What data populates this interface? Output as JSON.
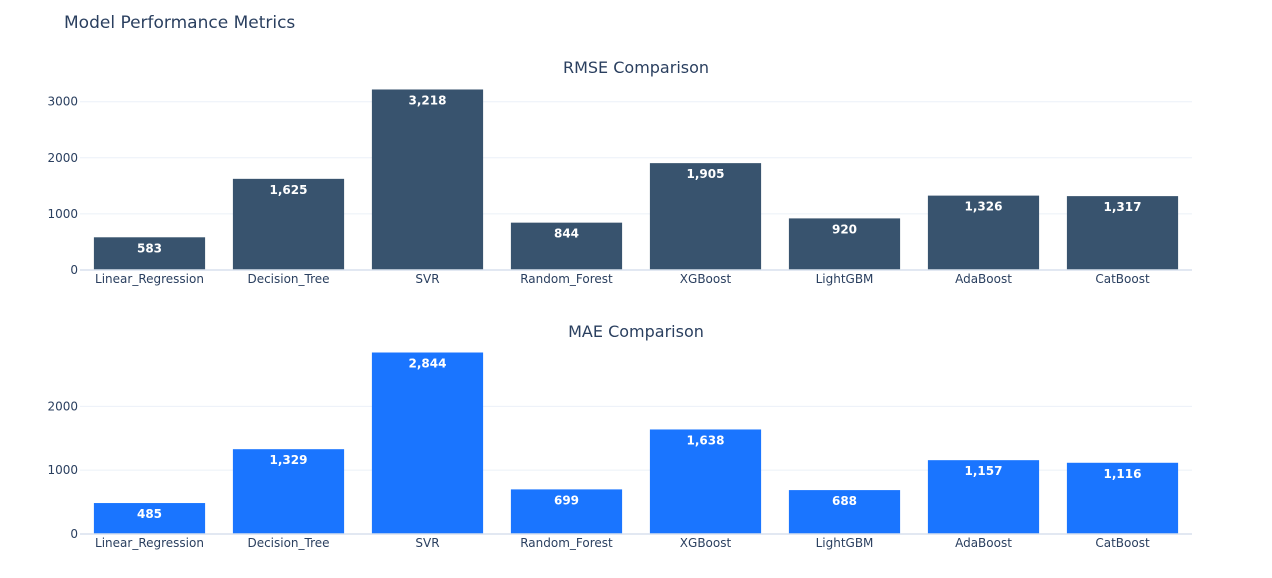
{
  "title": "Model Performance Metrics",
  "colors": {
    "rmse": "#38536e",
    "mae": "#1a75ff"
  },
  "chart_data": [
    {
      "type": "bar",
      "title": "RMSE Comparison",
      "categories": [
        "Linear_Regression",
        "Decision_Tree",
        "SVR",
        "Random_Forest",
        "XGBoost",
        "LightGBM",
        "AdaBoost",
        "CatBoost"
      ],
      "values": [
        583,
        1625,
        3218,
        844,
        1905,
        920,
        1326,
        1317
      ],
      "labels": [
        "583",
        "1,625",
        "3,218",
        "844",
        "1,905",
        "920",
        "1,326",
        "1,317"
      ],
      "yticks": [
        "0",
        "1000",
        "2000",
        "3000"
      ],
      "ylim": [
        0,
        3387
      ],
      "grid": true,
      "color": "#38536e"
    },
    {
      "type": "bar",
      "title": "MAE Comparison",
      "categories": [
        "Linear_Regression",
        "Decision_Tree",
        "SVR",
        "Random_Forest",
        "XGBoost",
        "LightGBM",
        "AdaBoost",
        "CatBoost"
      ],
      "values": [
        485,
        1329,
        2844,
        699,
        1638,
        688,
        1157,
        1116
      ],
      "labels": [
        "485",
        "1,329",
        "2,844",
        "699",
        "1,638",
        "688",
        "1,157",
        "1,116"
      ],
      "yticks": [
        "0",
        "1000",
        "2000"
      ],
      "ylim": [
        0,
        2993
      ],
      "grid": true,
      "color": "#1a75ff"
    }
  ]
}
